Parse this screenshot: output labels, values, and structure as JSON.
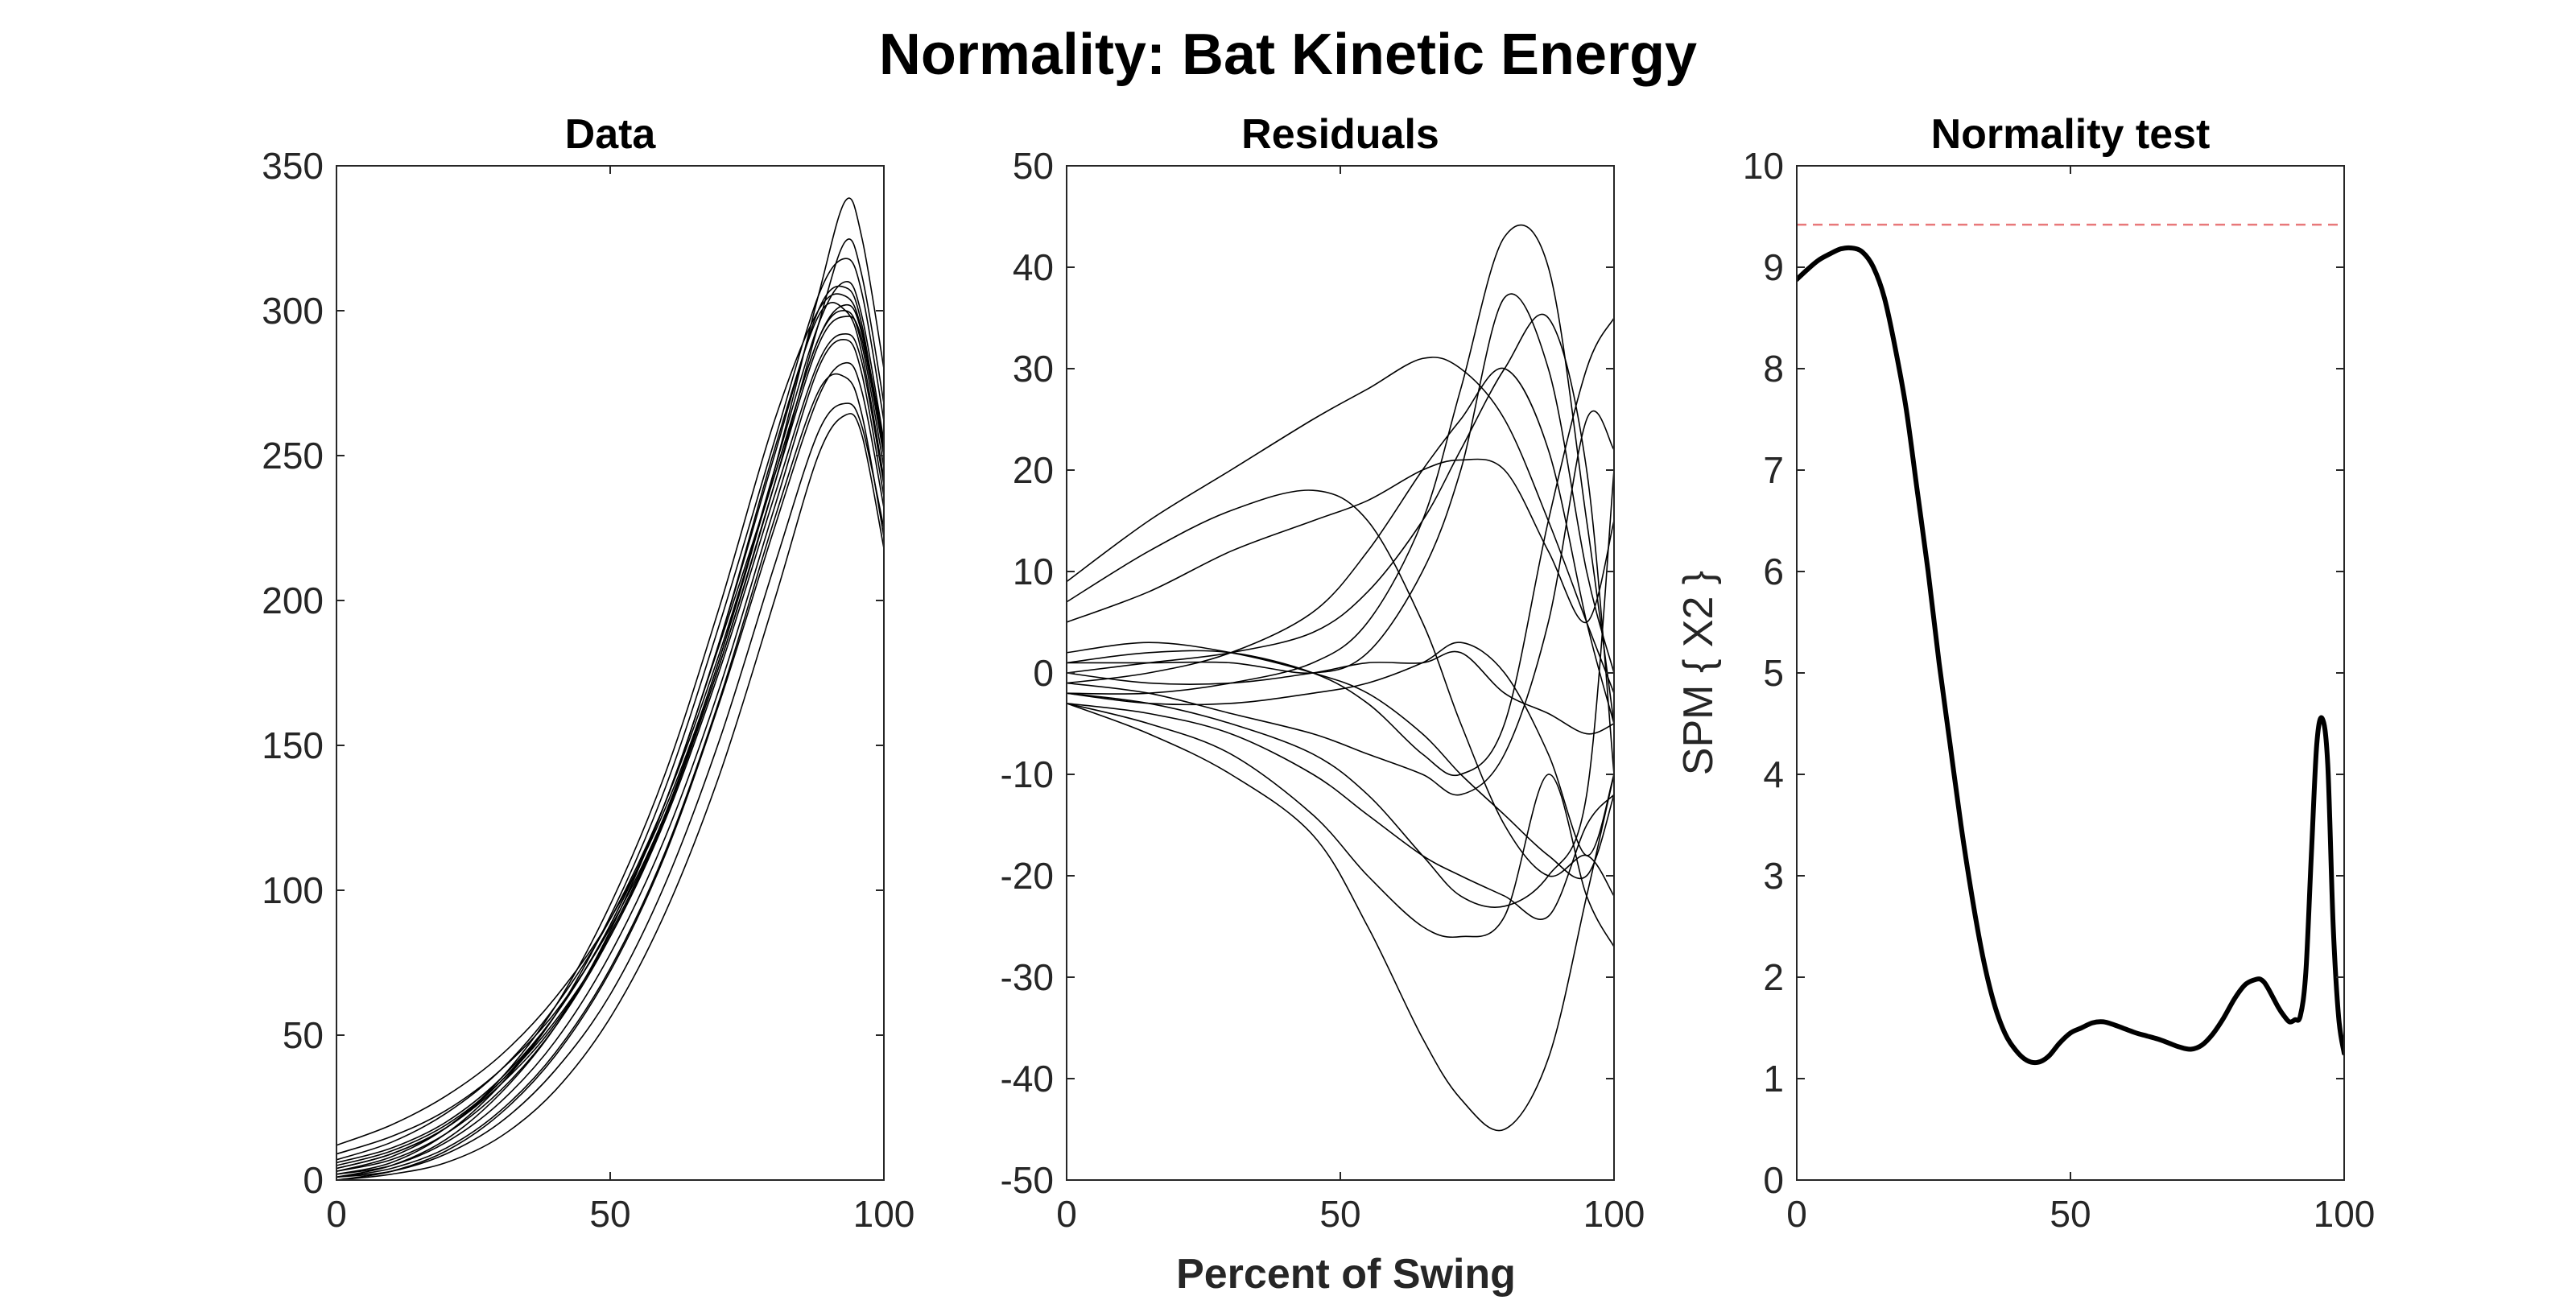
{
  "title": "Normality: Bat Kinetic Energy",
  "xlabel": "Percent of Swing",
  "colors": {
    "traces": "#000000",
    "axes": "#262626",
    "threshold": "#e8787a"
  },
  "chart_data": [
    {
      "type": "line",
      "title": "Data",
      "xlim": [
        0,
        100
      ],
      "ylim": [
        0,
        350
      ],
      "xticks": [
        0,
        50,
        100
      ],
      "yticks": [
        0,
        50,
        100,
        150,
        200,
        250,
        300,
        350
      ],
      "ylabel": "",
      "grid": false,
      "series": [
        {
          "x": [
            0,
            10,
            20,
            30,
            40,
            50,
            60,
            70,
            80,
            88,
            93,
            96,
            100
          ],
          "y": [
            1,
            5,
            14,
            30,
            53,
            86,
            130,
            185,
            243,
            290,
            300,
            288,
            246
          ]
        },
        {
          "x": [
            0,
            10,
            20,
            30,
            40,
            50,
            60,
            70,
            80,
            88,
            93,
            96,
            100
          ],
          "y": [
            2,
            6,
            16,
            33,
            57,
            91,
            135,
            192,
            255,
            305,
            318,
            306,
            262
          ]
        },
        {
          "x": [
            0,
            10,
            20,
            30,
            40,
            50,
            60,
            70,
            80,
            88,
            93,
            96,
            100
          ],
          "y": [
            0,
            3,
            10,
            23,
            43,
            72,
            112,
            165,
            225,
            270,
            282,
            272,
            232
          ]
        },
        {
          "x": [
            0,
            10,
            20,
            30,
            40,
            50,
            60,
            70,
            80,
            88,
            93,
            96,
            100
          ],
          "y": [
            12,
            19,
            29,
            43,
            63,
            90,
            128,
            180,
            245,
            305,
            338,
            325,
            280
          ]
        },
        {
          "x": [
            0,
            10,
            20,
            30,
            40,
            50,
            60,
            70,
            80,
            88,
            93,
            96,
            100
          ],
          "y": [
            9,
            15,
            24,
            38,
            58,
            87,
            126,
            178,
            240,
            295,
            324,
            312,
            268
          ]
        },
        {
          "x": [
            0,
            10,
            20,
            30,
            40,
            50,
            60,
            70,
            80,
            88,
            93,
            96,
            100
          ],
          "y": [
            4,
            9,
            18,
            34,
            57,
            88,
            130,
            186,
            250,
            300,
            308,
            295,
            250
          ]
        },
        {
          "x": [
            0,
            10,
            20,
            30,
            40,
            50,
            60,
            70,
            80,
            88,
            93,
            96,
            100
          ],
          "y": [
            1,
            3,
            9,
            20,
            38,
            64,
            102,
            152,
            212,
            258,
            268,
            260,
            225
          ]
        },
        {
          "x": [
            0,
            10,
            20,
            30,
            40,
            50,
            60,
            70,
            80,
            88,
            93,
            96,
            100
          ],
          "y": [
            3,
            8,
            18,
            35,
            60,
            95,
            140,
            198,
            262,
            300,
            305,
            293,
            254
          ]
        },
        {
          "x": [
            0,
            10,
            20,
            30,
            40,
            50,
            60,
            70,
            80,
            88,
            93,
            96,
            100
          ],
          "y": [
            5,
            10,
            19,
            34,
            55,
            84,
            124,
            176,
            236,
            282,
            292,
            282,
            240
          ]
        },
        {
          "x": [
            0,
            10,
            20,
            30,
            40,
            50,
            60,
            70,
            80,
            88,
            93,
            96,
            100
          ],
          "y": [
            2,
            5,
            13,
            27,
            48,
            78,
            118,
            170,
            232,
            280,
            290,
            278,
            236
          ]
        },
        {
          "x": [
            0,
            10,
            20,
            30,
            40,
            50,
            60,
            70,
            80,
            88,
            93,
            96,
            100
          ],
          "y": [
            7,
            13,
            23,
            38,
            60,
            90,
            130,
            182,
            243,
            290,
            302,
            292,
            252
          ]
        },
        {
          "x": [
            0,
            10,
            20,
            30,
            40,
            50,
            60,
            70,
            80,
            88,
            93,
            96,
            100
          ],
          "y": [
            1,
            4,
            11,
            24,
            44,
            73,
            113,
            166,
            228,
            272,
            277,
            264,
            222
          ]
        },
        {
          "x": [
            0,
            10,
            20,
            30,
            40,
            50,
            60,
            70,
            80,
            88,
            93,
            96,
            100
          ],
          "y": [
            3,
            7,
            16,
            31,
            53,
            84,
            125,
            178,
            240,
            288,
            298,
            290,
            250
          ]
        },
        {
          "x": [
            0,
            10,
            20,
            30,
            40,
            50,
            60,
            70,
            80,
            88,
            93,
            96,
            100
          ],
          "y": [
            6,
            11,
            20,
            35,
            57,
            88,
            130,
            186,
            252,
            298,
            300,
            285,
            242
          ]
        },
        {
          "x": [
            0,
            10,
            20,
            30,
            40,
            50,
            60,
            70,
            80,
            88,
            93,
            96,
            100
          ],
          "y": [
            0,
            2,
            6,
            15,
            31,
            56,
            92,
            140,
            200,
            250,
            264,
            257,
            218
          ]
        },
        {
          "x": [
            0,
            10,
            20,
            30,
            40,
            50,
            60,
            70,
            80,
            88,
            93,
            96,
            100
          ],
          "y": [
            4,
            9,
            18,
            33,
            54,
            85,
            126,
            180,
            245,
            295,
            310,
            298,
            255
          ]
        }
      ]
    },
    {
      "type": "line",
      "title": "Residuals",
      "xlim": [
        0,
        100
      ],
      "ylim": [
        -50,
        50
      ],
      "xticks": [
        0,
        50,
        100
      ],
      "yticks": [
        -50,
        -40,
        -30,
        -20,
        -10,
        0,
        10,
        20,
        30,
        40,
        50
      ],
      "ylabel": "",
      "grid": false,
      "series": [
        {
          "x": [
            0,
            15,
            30,
            45,
            55,
            65,
            72,
            80,
            88,
            95,
            100
          ],
          "y": [
            -3,
            -5,
            -8,
            -14,
            -20,
            -25,
            -26,
            -24,
            -10,
            -22,
            -27
          ]
        },
        {
          "x": [
            0,
            15,
            30,
            45,
            55,
            65,
            72,
            80,
            88,
            95,
            100
          ],
          "y": [
            -2,
            -3,
            -5,
            -8,
            -12,
            -18,
            -22,
            -23,
            -20,
            -12,
            20
          ]
        },
        {
          "x": [
            0,
            15,
            30,
            45,
            55,
            65,
            72,
            80,
            88,
            95,
            100
          ],
          "y": [
            -2,
            -2,
            -1,
            1,
            5,
            15,
            28,
            43,
            40,
            15,
            -5
          ]
        },
        {
          "x": [
            0,
            15,
            30,
            45,
            55,
            65,
            72,
            80,
            88,
            95,
            100
          ],
          "y": [
            9,
            15,
            20,
            25,
            28,
            31,
            30,
            25,
            15,
            5,
            -2
          ]
        },
        {
          "x": [
            0,
            15,
            30,
            45,
            55,
            65,
            72,
            80,
            88,
            95,
            100
          ],
          "y": [
            7,
            12,
            16,
            18,
            15,
            5,
            -5,
            -15,
            -20,
            -18,
            -22
          ]
        },
        {
          "x": [
            0,
            15,
            30,
            45,
            55,
            65,
            72,
            80,
            88,
            95,
            100
          ],
          "y": [
            -3,
            -6,
            -10,
            -16,
            -25,
            -36,
            -42,
            -45,
            -38,
            -22,
            -10
          ]
        },
        {
          "x": [
            0,
            15,
            30,
            45,
            55,
            65,
            72,
            80,
            88,
            95,
            100
          ],
          "y": [
            5,
            8,
            12,
            15,
            17,
            20,
            21,
            20,
            12,
            5,
            15
          ]
        },
        {
          "x": [
            0,
            15,
            30,
            45,
            55,
            65,
            72,
            80,
            88,
            95,
            100
          ],
          "y": [
            1,
            2,
            2,
            0,
            -3,
            -8,
            -10,
            -5,
            15,
            30,
            35
          ]
        },
        {
          "x": [
            0,
            15,
            30,
            45,
            55,
            65,
            72,
            80,
            88,
            95,
            100
          ],
          "y": [
            0,
            1,
            2,
            4,
            8,
            15,
            22,
            30,
            35,
            20,
            -10
          ]
        },
        {
          "x": [
            0,
            15,
            30,
            45,
            55,
            65,
            72,
            80,
            88,
            95,
            100
          ],
          "y": [
            -1,
            -2,
            -4,
            -6,
            -8,
            -10,
            -12,
            -8,
            5,
            25,
            22
          ]
        },
        {
          "x": [
            0,
            15,
            30,
            45,
            55,
            65,
            72,
            80,
            88,
            95,
            100
          ],
          "y": [
            -3,
            -4,
            -6,
            -10,
            -14,
            -18,
            -20,
            -22,
            -24,
            -15,
            -12
          ]
        },
        {
          "x": [
            0,
            15,
            30,
            45,
            55,
            65,
            72,
            80,
            88,
            95,
            100
          ],
          "y": [
            1,
            1,
            1,
            0,
            2,
            10,
            20,
            37,
            30,
            10,
            0
          ]
        },
        {
          "x": [
            0,
            15,
            30,
            45,
            55,
            65,
            72,
            80,
            88,
            95,
            100
          ],
          "y": [
            -2,
            -3,
            -3,
            -2,
            -1,
            1,
            3,
            0,
            -8,
            -18,
            -10
          ]
        },
        {
          "x": [
            0,
            15,
            30,
            45,
            55,
            65,
            72,
            80,
            88,
            95,
            100
          ],
          "y": [
            0,
            -1,
            -1,
            0,
            1,
            1,
            2,
            -2,
            -4,
            -6,
            -5
          ]
        },
        {
          "x": [
            0,
            15,
            30,
            45,
            55,
            65,
            72,
            80,
            88,
            95,
            100
          ],
          "y": [
            -1,
            0,
            2,
            6,
            12,
            20,
            25,
            30,
            22,
            5,
            -5
          ]
        },
        {
          "x": [
            0,
            15,
            30,
            45,
            55,
            65,
            72,
            80,
            88,
            95,
            100
          ],
          "y": [
            2,
            3,
            2,
            0,
            -2,
            -6,
            -10,
            -14,
            -18,
            -20,
            -12
          ]
        }
      ]
    },
    {
      "type": "line",
      "title": "Normality test",
      "xlim": [
        0,
        100
      ],
      "ylim": [
        0,
        10
      ],
      "xticks": [
        0,
        50,
        100
      ],
      "yticks": [
        0,
        1,
        2,
        3,
        4,
        5,
        6,
        7,
        8,
        9,
        10
      ],
      "ylabel": "SPM { X2 }",
      "grid": false,
      "threshold": 9.42,
      "series": [
        {
          "x": [
            0,
            2,
            4,
            6,
            8,
            10,
            12,
            14,
            16,
            18,
            20,
            22,
            24,
            26,
            28,
            30,
            32,
            34,
            36,
            38,
            40,
            42,
            44,
            46,
            48,
            50,
            52,
            54,
            56,
            58,
            60,
            62,
            64,
            66,
            68,
            70,
            72,
            74,
            76,
            78,
            80,
            82,
            84,
            85,
            86,
            88,
            89,
            90,
            91,
            92,
            93,
            94,
            95,
            96,
            97,
            98,
            99,
            100
          ],
          "y": [
            8.88,
            8.98,
            9.07,
            9.13,
            9.18,
            9.19,
            9.15,
            9.0,
            8.7,
            8.2,
            7.6,
            6.8,
            6.0,
            5.1,
            4.3,
            3.5,
            2.8,
            2.2,
            1.75,
            1.45,
            1.28,
            1.18,
            1.16,
            1.22,
            1.35,
            1.45,
            1.5,
            1.55,
            1.56,
            1.53,
            1.49,
            1.45,
            1.42,
            1.39,
            1.35,
            1.31,
            1.29,
            1.33,
            1.44,
            1.6,
            1.79,
            1.93,
            1.98,
            1.97,
            1.9,
            1.7,
            1.62,
            1.56,
            1.58,
            1.62,
            2.05,
            3.2,
            4.3,
            4.55,
            4.1,
            2.5,
            1.6,
            1.25
          ]
        }
      ]
    }
  ]
}
